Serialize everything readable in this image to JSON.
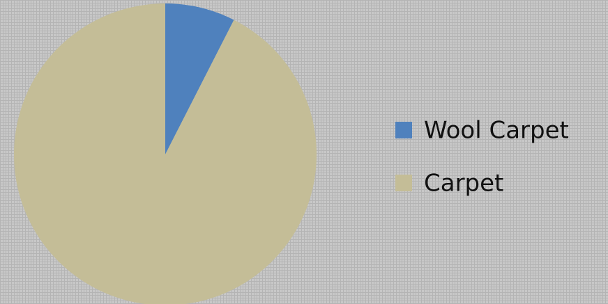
{
  "chart_data": {
    "type": "pie",
    "categories": [
      "Wool Carpet",
      "Carpet"
    ],
    "values": [
      7.5,
      92.5
    ],
    "colors": [
      "#4f81bd",
      "#c4bd97"
    ],
    "legend": "right"
  }
}
